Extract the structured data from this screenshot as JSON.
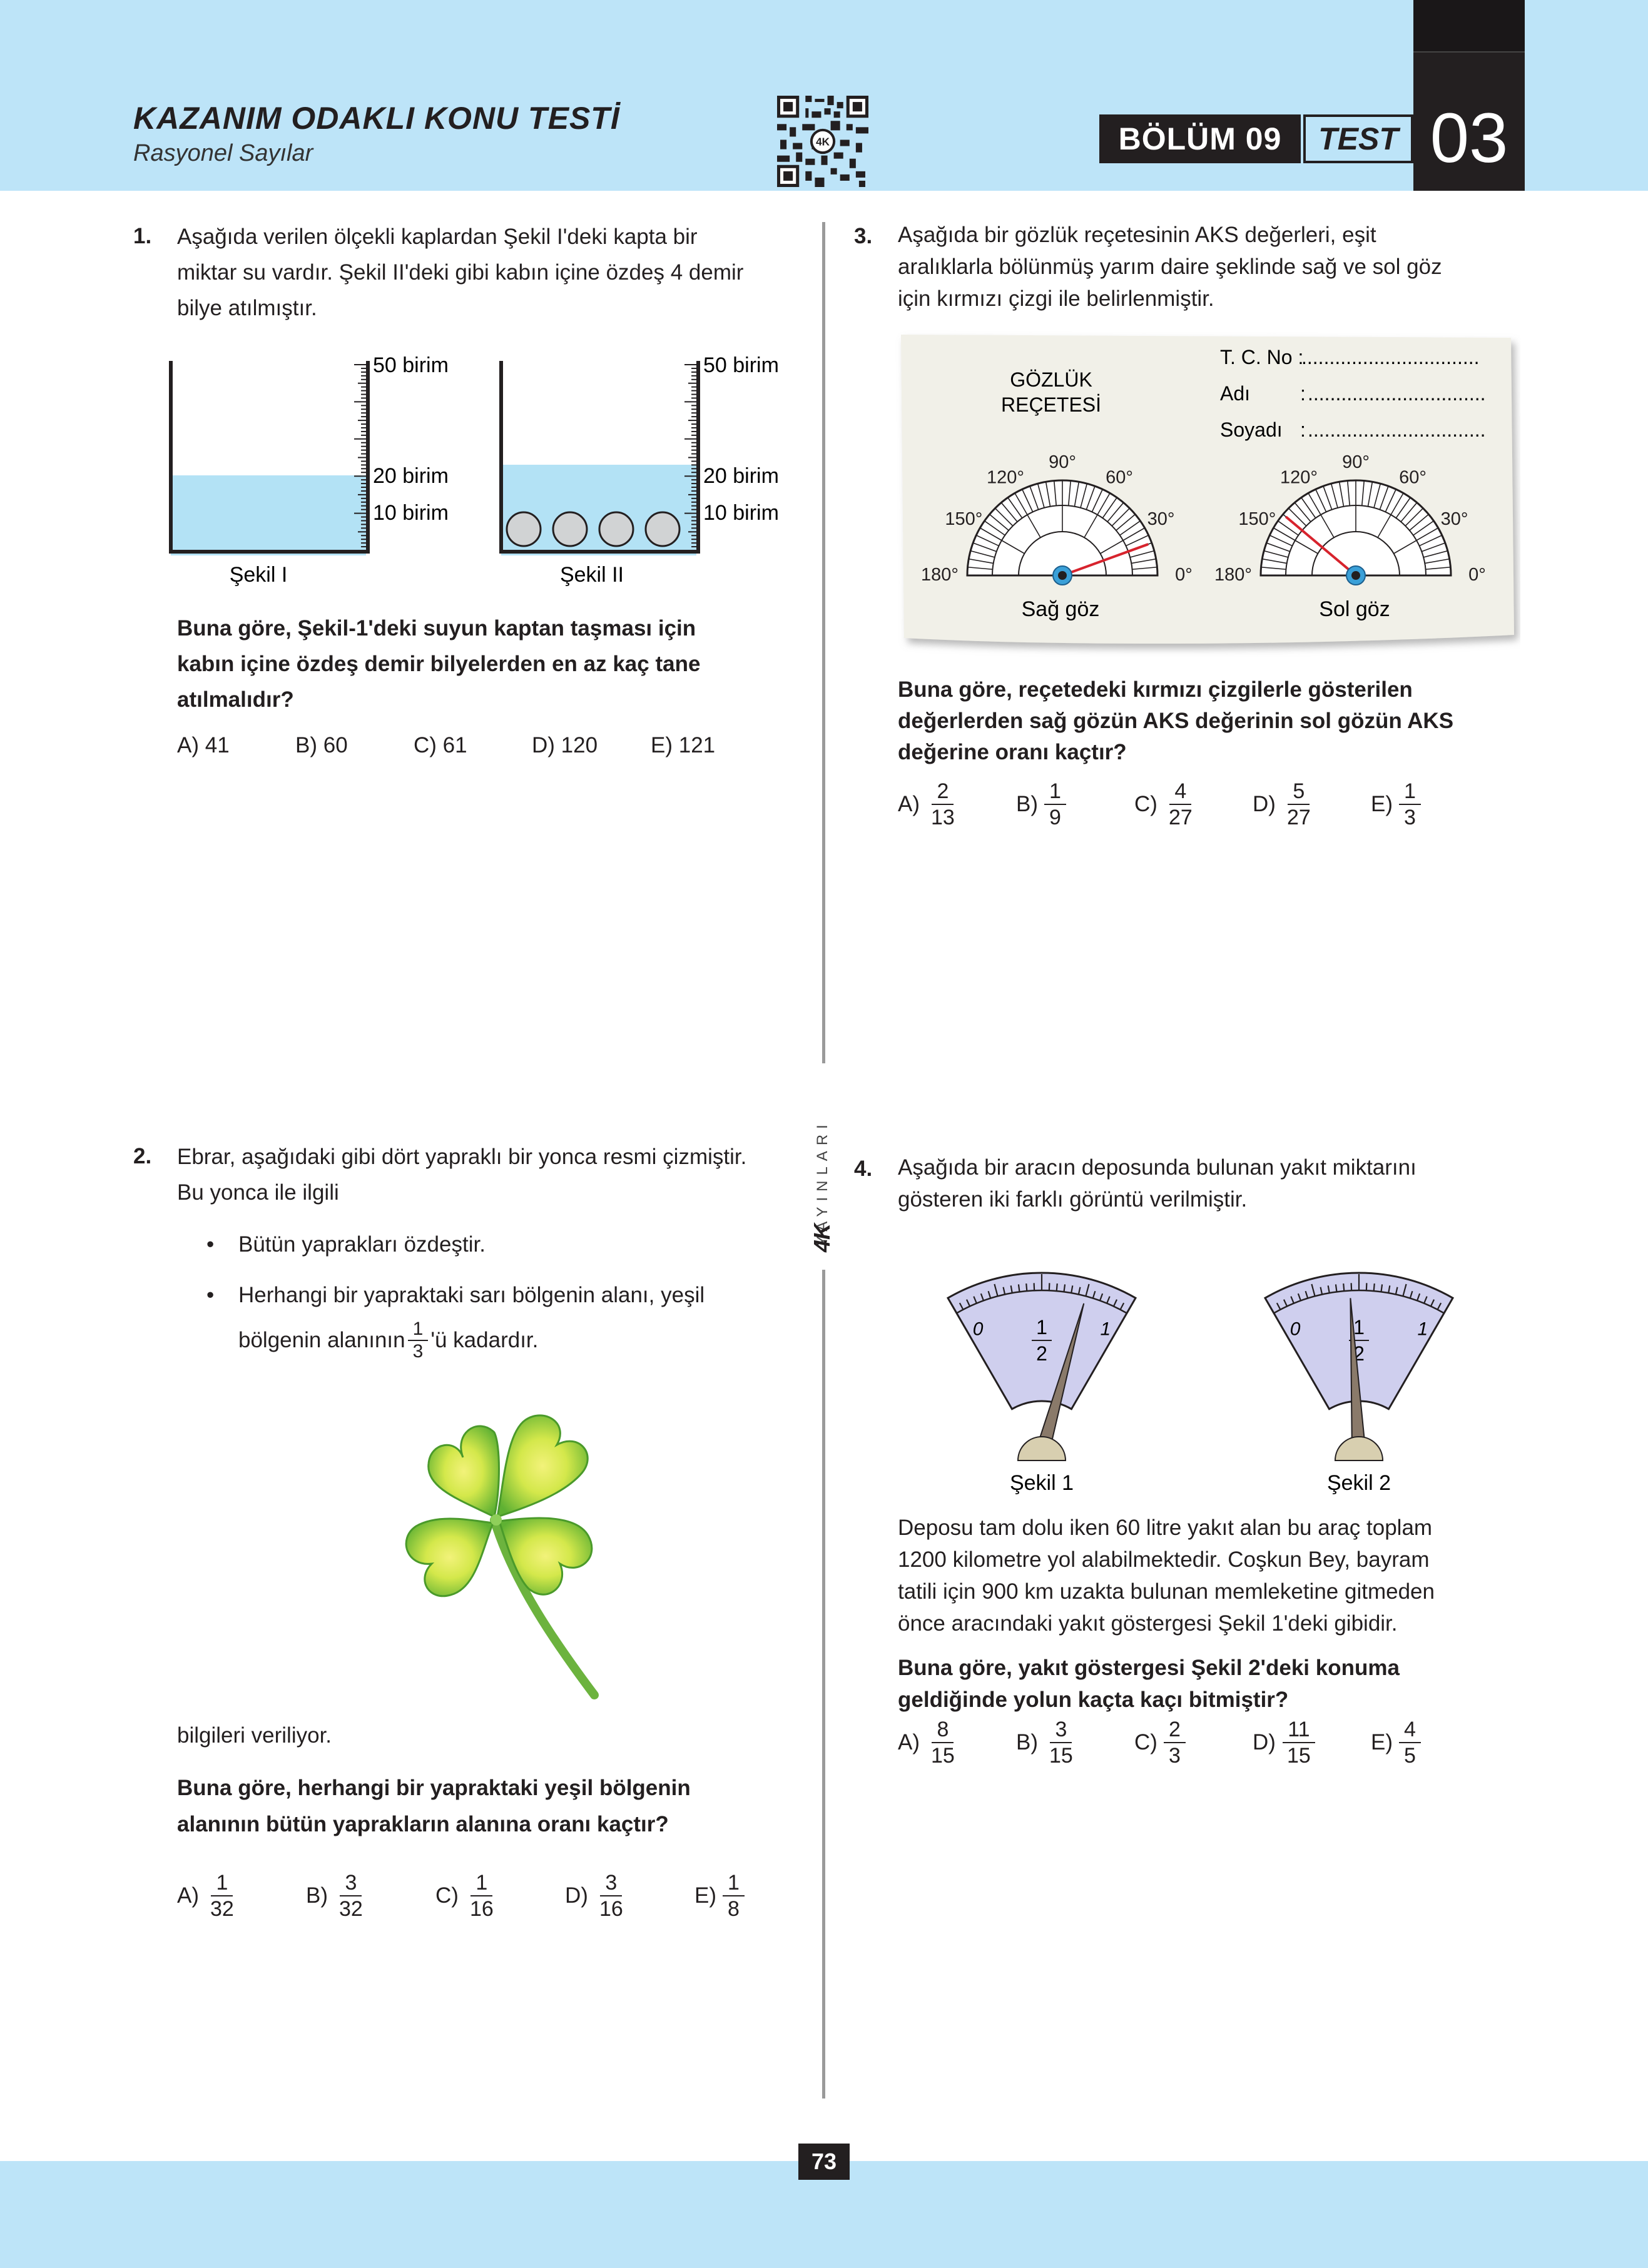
{
  "header": {
    "title": "KAZANIM ODAKLI KONU TESTİ",
    "subtitle": "Rasyonel Sayılar",
    "bolum": "BÖLÜM 09",
    "test_label": "TEST",
    "test_number": "03"
  },
  "brand": {
    "logo": "4K",
    "name": "YAYINLARI"
  },
  "page_number": "73",
  "colors": {
    "header_bg": "#bde4f8",
    "dark": "#231f20",
    "water": "#b3e2f5",
    "gauge": "#cfcfee",
    "red_line": "#d7232d"
  },
  "q1": {
    "number": "1.",
    "text": "Aşağıda verilen ölçekli kaplardan Şekil I'deki kapta bir miktar su vardır. Şekil II'deki gibi kabın içine özdeş 4 demir bilye atılmıştır.",
    "line1": "Aşağıda verilen ölçekli kaplardan Şekil I'deki kapta bir",
    "line2": "miktar su vardır. Şekil II'deki gibi kabın içine özdeş 4 demir",
    "line3": "bilye atılmıştır.",
    "scale_50": "50 birim",
    "scale_20": "20 birim",
    "scale_10": "10 birim",
    "fig1_caption": "Şekil I",
    "fig2_caption": "Şekil II",
    "question_line1": "Buna göre, Şekil-1'deki  suyun kaptan taşması için",
    "question_line2": "kabın içine özdeş demir bilyelerden en az kaç tane",
    "question_line3": "atılmalıdır?",
    "options": [
      {
        "label": "A) 41"
      },
      {
        "label": "B) 60"
      },
      {
        "label": "C) 61"
      },
      {
        "label": "D) 120"
      },
      {
        "label": "E) 121"
      }
    ]
  },
  "q2": {
    "number": "2.",
    "line1": "Ebrar, aşağıdaki gibi dört yapraklı bir yonca resmi çizmiştir.",
    "line2": "Bu yonca ile ilgili",
    "bullet1": "Bütün yaprakları özdeştir.",
    "bullet2_line1": "Herhangi bir yapraktaki sarı bölgenin alanı, yeşil",
    "bullet2_pre": "bölgenin alanının",
    "bullet2_frac_n": "1",
    "bullet2_frac_d": "3",
    "bullet2_post": "'ü kadardır.",
    "bullet_mark": "•",
    "after": "bilgileri veriliyor.",
    "question_line1": "Buna göre, herhangi bir yapraktaki yeşil bölgenin",
    "question_line2": "alanının bütün yaprakların alanına oranı kaçtır?",
    "options": [
      {
        "label": "A)",
        "n": "1",
        "d": "32"
      },
      {
        "label": "B)",
        "n": "3",
        "d": "32"
      },
      {
        "label": "C)",
        "n": "1",
        "d": "16"
      },
      {
        "label": "D)",
        "n": "3",
        "d": "16"
      },
      {
        "label": "E)",
        "n": "1",
        "d": "8"
      }
    ]
  },
  "q3": {
    "number": "3.",
    "line1": "Aşağıda bir gözlük reçetesinin AKS değerleri, eşit",
    "line2": "aralıklarla bölünmüş yarım daire şeklinde sağ ve sol göz",
    "line3": "için kırmızı çizgi ile belirlenmiştir.",
    "card_title1": "GÖZLÜK",
    "card_title2": "REÇETESİ",
    "tc_label": "T. C. No :",
    "adi_label": "Adı",
    "soyadi_label": "Soyadı",
    "colon": ":",
    "dots": "................................",
    "angles": [
      "180°",
      "150°",
      "120°",
      "90°",
      "60°",
      "30°",
      "0°"
    ],
    "right_eye": "Sağ göz",
    "left_eye": "Sol göz",
    "right_eye_angle": 20,
    "left_eye_angle": 140,
    "question_line1": "Buna göre, reçetedeki kırmızı çizgilerle gösterilen",
    "question_line2": "değerlerden sağ gözün AKS değerinin sol gözün AKS",
    "question_line3": "değerine oranı kaçtır?",
    "options": [
      {
        "label": "A)",
        "n": "2",
        "d": "13"
      },
      {
        "label": "B)",
        "n": "1",
        "d": "9"
      },
      {
        "label": "C)",
        "n": "4",
        "d": "27"
      },
      {
        "label": "D)",
        "n": "5",
        "d": "27"
      },
      {
        "label": "E)",
        "n": "1",
        "d": "3"
      }
    ]
  },
  "q4": {
    "number": "4.",
    "line1": "Aşağıda bir aracın deposunda bulunan yakıt miktarını",
    "line2": "gösteren iki farklı görüntü verilmiştir.",
    "gauge_zero": "0",
    "gauge_one": "1",
    "gauge_half_n": "1",
    "gauge_half_d": "2",
    "fig1_caption": "Şekil 1",
    "fig2_caption": "Şekil 2",
    "gauge1_level": 0.75,
    "gauge2_level": 0.45,
    "para_line1": "Deposu tam dolu iken 60 litre yakıt alan bu araç toplam",
    "para_line2": "1200 kilometre yol alabilmektedir. Coşkun Bey, bayram",
    "para_line3": "tatili için 900 km uzakta bulunan memleketine gitmeden",
    "para_line4": "önce aracındaki yakıt göstergesi Şekil 1'deki gibidir.",
    "question_line1": "Buna göre, yakıt göstergesi Şekil 2'deki konuma",
    "question_line2": "geldiğinde yolun kaçta kaçı bitmiştir?",
    "options": [
      {
        "label": "A)",
        "n": "8",
        "d": "15"
      },
      {
        "label": "B)",
        "n": "3",
        "d": "15"
      },
      {
        "label": "C)",
        "n": "2",
        "d": "3"
      },
      {
        "label": "D)",
        "n": "11",
        "d": "15"
      },
      {
        "label": "E)",
        "n": "4",
        "d": "5"
      }
    ]
  }
}
